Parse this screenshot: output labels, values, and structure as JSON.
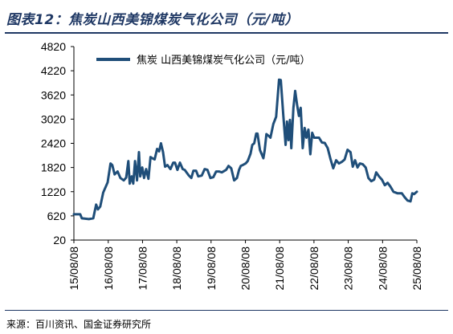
{
  "header": {
    "title": "图表12：焦炭山西美锦煤炭气化公司（元/吨）"
  },
  "footer": {
    "source": "来源：百川资讯、国金证券研究所"
  },
  "colors": {
    "line": "#1f4e79",
    "rule": "#1f3864"
  },
  "chart_data": {
    "type": "line",
    "title": "",
    "xlabel": "",
    "ylabel": "",
    "ylim": [
      20,
      4820
    ],
    "yticks": [
      20,
      620,
      1220,
      1820,
      2420,
      3020,
      3620,
      4220,
      4820
    ],
    "xlim": [
      "15/08/08",
      "25/08/08"
    ],
    "xticks": [
      "15/08/08",
      "16/08/08",
      "17/08/08",
      "18/08/08",
      "19/08/08",
      "20/08/08",
      "21/08/08",
      "22/08/08",
      "23/08/08",
      "24/08/08",
      "25/08/08"
    ],
    "grid": false,
    "legend": "top-left",
    "series": [
      {
        "name": "焦炭 山西美锦煤炭气化公司（元/吨）",
        "points": [
          [
            "15/08/08",
            660
          ],
          [
            "15/10/15",
            660
          ],
          [
            "15/11/01",
            560
          ],
          [
            "16/01/15",
            540
          ],
          [
            "16/03/01",
            560
          ],
          [
            "16/04/01",
            900
          ],
          [
            "16/04/20",
            780
          ],
          [
            "16/05/15",
            850
          ],
          [
            "16/06/15",
            1200
          ],
          [
            "16/08/01",
            1450
          ],
          [
            "16/09/01",
            1920
          ],
          [
            "16/09/20",
            1880
          ],
          [
            "16/10/15",
            1650
          ],
          [
            "16/11/15",
            1720
          ],
          [
            "16/12/15",
            1560
          ],
          [
            "17/01/20",
            1500
          ],
          [
            "17/02/15",
            1570
          ],
          [
            "17/03/10",
            1980
          ],
          [
            "17/03/25",
            1420
          ],
          [
            "17/04/15",
            1600
          ],
          [
            "17/05/01",
            1420
          ],
          [
            "17/05/20",
            1980
          ],
          [
            "17/06/10",
            1500
          ],
          [
            "17/07/01",
            2200
          ],
          [
            "17/07/15",
            1600
          ],
          [
            "17/08/05",
            1820
          ],
          [
            "17/08/25",
            1560
          ],
          [
            "17/09/15",
            1780
          ],
          [
            "17/10/10",
            1540
          ],
          [
            "17/11/01",
            2080
          ],
          [
            "17/11/20",
            2050
          ],
          [
            "17/12/15",
            2020
          ],
          [
            "18/01/10",
            2280
          ],
          [
            "18/02/01",
            2220
          ],
          [
            "18/02/20",
            2420
          ],
          [
            "18/03/15",
            2200
          ],
          [
            "18/04/05",
            1840
          ],
          [
            "18/05/01",
            1880
          ],
          [
            "18/06/01",
            1780
          ],
          [
            "18/07/01",
            1940
          ],
          [
            "18/07/20",
            1940
          ],
          [
            "18/08/15",
            1760
          ],
          [
            "18/09/10",
            1940
          ],
          [
            "18/10/10",
            1780
          ],
          [
            "18/11/01",
            1760
          ],
          [
            "18/12/15",
            1620
          ],
          [
            "19/01/10",
            1560
          ],
          [
            "19/02/01",
            1740
          ],
          [
            "19/03/01",
            1740
          ],
          [
            "19/03/25",
            1600
          ],
          [
            "19/05/01",
            1620
          ],
          [
            "19/06/01",
            1780
          ],
          [
            "19/07/01",
            1760
          ],
          [
            "19/08/01",
            1560
          ],
          [
            "19/09/01",
            1580
          ],
          [
            "19/10/01",
            1720
          ],
          [
            "19/11/01",
            1720
          ],
          [
            "19/12/01",
            1700
          ],
          [
            "20/01/15",
            1760
          ],
          [
            "20/02/10",
            1860
          ],
          [
            "20/03/10",
            1800
          ],
          [
            "20/04/10",
            1500
          ],
          [
            "20/05/10",
            1560
          ],
          [
            "20/06/01",
            1760
          ],
          [
            "20/06/20",
            1860
          ],
          [
            "20/07/10",
            1880
          ],
          [
            "20/08/10",
            1920
          ],
          [
            "20/09/01",
            1980
          ],
          [
            "20/10/01",
            2160
          ],
          [
            "20/10/20",
            2380
          ],
          [
            "20/11/10",
            2420
          ],
          [
            "20/12/01",
            2660
          ],
          [
            "20/12/15",
            2660
          ],
          [
            "21/01/10",
            2250
          ],
          [
            "21/02/15",
            2050
          ],
          [
            "21/03/01",
            2240
          ],
          [
            "21/03/20",
            2650
          ],
          [
            "21/04/15",
            2600
          ],
          [
            "21/05/01",
            2560
          ],
          [
            "21/06/01",
            2900
          ],
          [
            "21/07/01",
            3080
          ],
          [
            "21/08/01",
            4000
          ],
          [
            "21/08/20",
            3990
          ],
          [
            "21/09/15",
            3120
          ],
          [
            "21/10/10",
            2380
          ],
          [
            "21/10/25",
            2960
          ],
          [
            "21/11/10",
            2500
          ],
          [
            "21/11/25",
            3000
          ],
          [
            "21/12/10",
            2300
          ],
          [
            "22/01/01",
            3300
          ],
          [
            "22/01/20",
            3720
          ],
          [
            "22/02/10",
            3360
          ],
          [
            "22/03/01",
            3100
          ],
          [
            "22/03/20",
            3300
          ],
          [
            "22/04/10",
            2300
          ],
          [
            "22/05/01",
            2800
          ],
          [
            "22/05/20",
            2560
          ],
          [
            "22/06/10",
            2760
          ],
          [
            "22/07/01",
            2150
          ],
          [
            "22/07/20",
            2680
          ],
          [
            "22/08/10",
            2560
          ],
          [
            "22/09/01",
            2560
          ],
          [
            "22/10/01",
            2560
          ],
          [
            "22/11/01",
            2440
          ],
          [
            "22/12/01",
            2430
          ],
          [
            "23/01/01",
            2300
          ],
          [
            "23/02/01",
            2020
          ],
          [
            "23/03/01",
            1800
          ],
          [
            "23/04/01",
            2000
          ],
          [
            "23/05/01",
            1920
          ],
          [
            "23/06/01",
            1960
          ],
          [
            "23/07/01",
            2020
          ],
          [
            "23/08/01",
            2260
          ],
          [
            "23/09/01",
            2200
          ],
          [
            "23/09/25",
            1840
          ],
          [
            "23/10/20",
            2000
          ],
          [
            "23/11/15",
            1820
          ],
          [
            "23/12/10",
            1920
          ],
          [
            "24/01/10",
            1900
          ],
          [
            "24/02/10",
            1820
          ],
          [
            "24/03/10",
            1560
          ],
          [
            "24/04/10",
            1480
          ],
          [
            "24/05/10",
            1520
          ],
          [
            "24/06/01",
            1700
          ],
          [
            "24/07/01",
            1600
          ],
          [
            "24/08/01",
            1520
          ],
          [
            "24/09/01",
            1380
          ],
          [
            "24/10/01",
            1440
          ],
          [
            "24/11/01",
            1340
          ],
          [
            "24/12/01",
            1220
          ],
          [
            "25/01/15",
            1180
          ],
          [
            "25/03/01",
            1180
          ],
          [
            "25/04/01",
            1080
          ],
          [
            "25/05/01",
            1000
          ],
          [
            "25/06/01",
            980
          ],
          [
            "25/06/20",
            1180
          ],
          [
            "25/07/10",
            1160
          ],
          [
            "25/08/08",
            1220
          ]
        ]
      }
    ]
  }
}
